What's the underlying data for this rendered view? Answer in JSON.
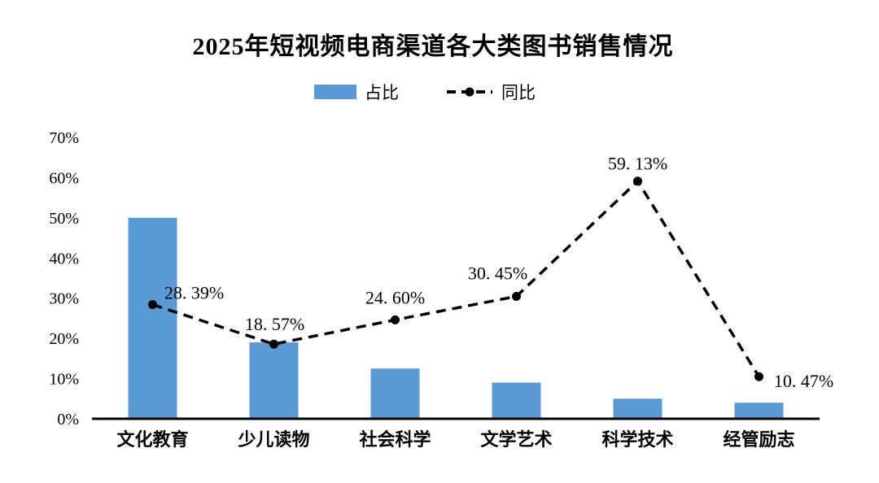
{
  "chart_data": {
    "type": "bar",
    "title": "2025年短视频电商渠道各大类图书销售情况",
    "categories": [
      "文化教育",
      "少儿读物",
      "社会科学",
      "文学艺术",
      "科学技术",
      "经管励志"
    ],
    "series": [
      {
        "name": "占比",
        "type": "bar",
        "color": "#5B9BD5",
        "values": [
          50,
          19,
          12.5,
          9,
          5,
          4
        ]
      },
      {
        "name": "同比",
        "type": "line",
        "color": "#000000",
        "linestyle": "dashed",
        "marker": "circle",
        "values": [
          28.39,
          18.57,
          24.6,
          30.45,
          59.13,
          10.47
        ],
        "point_labels": [
          "28. 39%",
          "18. 57%",
          "24. 60%",
          "30. 45%",
          "59. 13%",
          "10. 47%"
        ],
        "label_offsets": [
          [
            51,
            -7
          ],
          [
            1,
            -17
          ],
          [
            0,
            -20
          ],
          [
            -23,
            -21
          ],
          [
            0,
            -14
          ],
          [
            55,
            13
          ]
        ]
      }
    ],
    "xlabel": "",
    "ylabel": "",
    "ylim": [
      0,
      70
    ],
    "ytick_step": 10,
    "ytick_suffix": "%",
    "grid": false,
    "legend_position": "top",
    "background": "#ffffff"
  }
}
